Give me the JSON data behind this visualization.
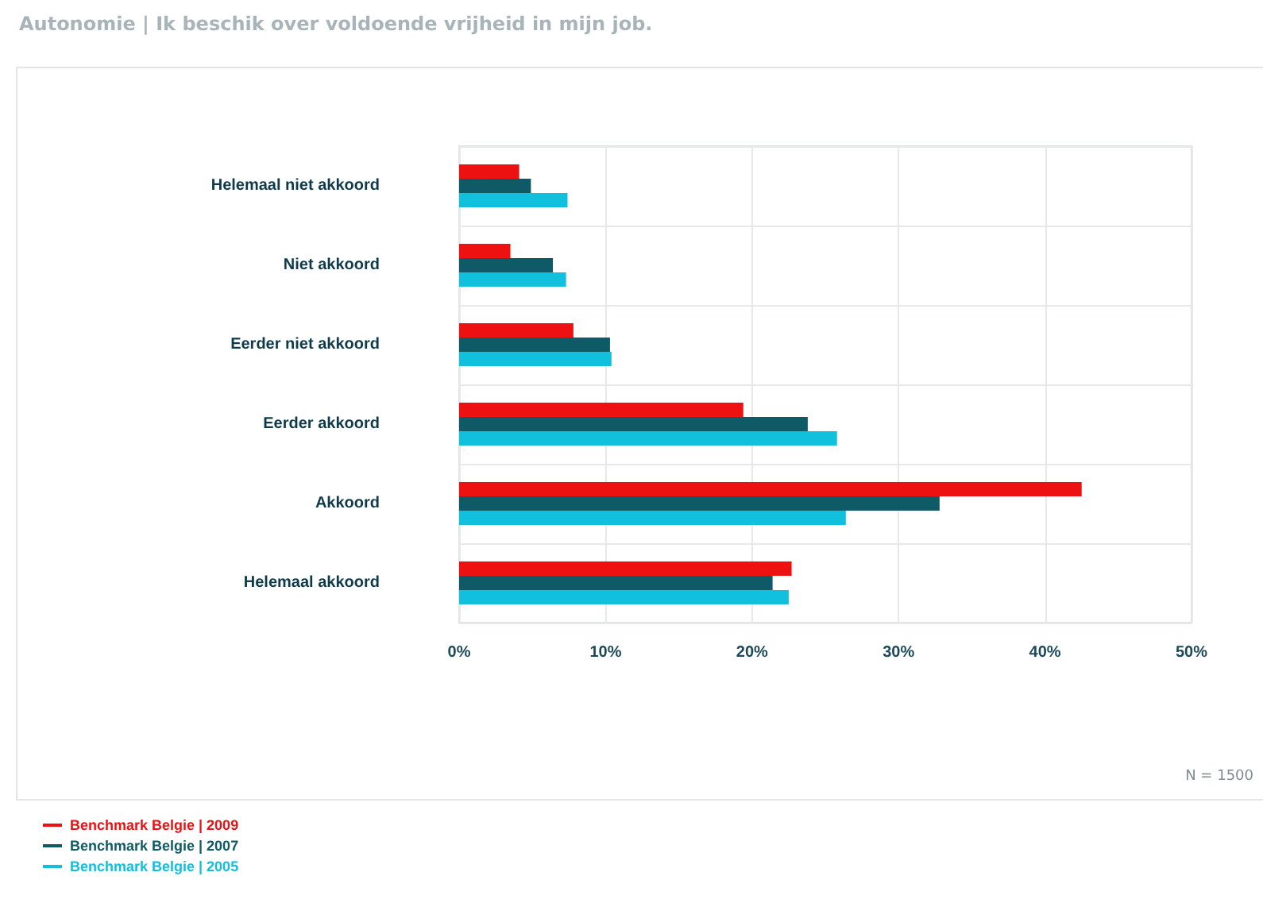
{
  "chart_data": {
    "type": "bar",
    "orientation": "horizontal",
    "title": "Autonomie | Ik beschik over voldoende vrijheid in mijn job.",
    "categories": [
      "Helemaal niet akkoord",
      "Niet akkoord",
      "Eerder niet akkoord",
      "Eerder akkoord",
      "Akkoord",
      "Helemaal akkoord"
    ],
    "series": [
      {
        "name": "Benchmark Belgie | 2009",
        "color": "#ee1111",
        "values": [
          4.1,
          3.5,
          7.8,
          19.4,
          42.5,
          22.7
        ]
      },
      {
        "name": "Benchmark Belgie | 2007",
        "color": "#0e5a66",
        "values": [
          4.9,
          6.4,
          10.3,
          23.8,
          32.8,
          21.4
        ]
      },
      {
        "name": "Benchmark Belgie | 2005",
        "color": "#11c0dd",
        "values": [
          7.4,
          7.3,
          10.4,
          25.8,
          26.4,
          22.5
        ]
      }
    ],
    "xlim": [
      0,
      50
    ],
    "xticks": [
      {
        "value": 0,
        "label": "0%"
      },
      {
        "value": 10,
        "label": "10%"
      },
      {
        "value": 20,
        "label": "20%"
      },
      {
        "value": 30,
        "label": "30%"
      },
      {
        "value": 40,
        "label": "40%"
      },
      {
        "value": 50,
        "label": "50%"
      }
    ],
    "grid": true,
    "legend": "bottom left",
    "annotations": [
      "N = 1500"
    ]
  }
}
